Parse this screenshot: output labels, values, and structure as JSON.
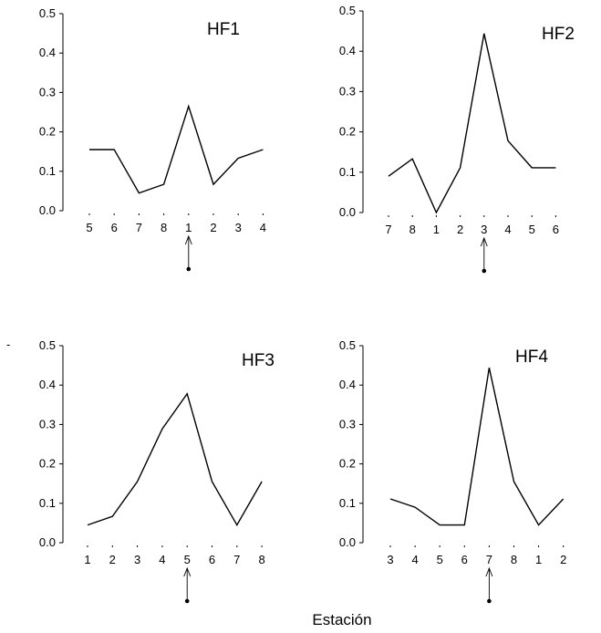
{
  "figure": {
    "xlabel": "Estación",
    "stray_mark": "-"
  },
  "chart_data": [
    {
      "type": "line",
      "title": "HF1",
      "categories": [
        "5",
        "6",
        "7",
        "8",
        "1",
        "2",
        "3",
        "4"
      ],
      "values": [
        0.155,
        0.155,
        0.045,
        0.067,
        0.265,
        0.067,
        0.133,
        0.155
      ],
      "ylim": [
        0,
        0.5
      ],
      "yticks": [
        "0.0",
        "0.1",
        "0.2",
        "0.3",
        "0.4",
        "0.5"
      ],
      "marker_category": "1",
      "grid": false
    },
    {
      "type": "line",
      "title": "HF2",
      "categories": [
        "7",
        "8",
        "1",
        "2",
        "3",
        "4",
        "5",
        "6"
      ],
      "values": [
        0.09,
        0.133,
        0.0,
        0.111,
        0.444,
        0.178,
        0.111,
        0.111
      ],
      "ylim": [
        0,
        0.5
      ],
      "yticks": [
        "0.0",
        "0.1",
        "0.2",
        "0.3",
        "0.4",
        "0.5"
      ],
      "marker_category": "3",
      "grid": false
    },
    {
      "type": "line",
      "title": "HF3",
      "categories": [
        "1",
        "2",
        "3",
        "4",
        "5",
        "6",
        "7",
        "8"
      ],
      "values": [
        0.045,
        0.067,
        0.155,
        0.289,
        0.378,
        0.155,
        0.045,
        0.155
      ],
      "ylim": [
        0,
        0.5
      ],
      "yticks": [
        "0.0",
        "0.1",
        "0.2",
        "0.3",
        "0.4",
        "0.5"
      ],
      "marker_category": "5",
      "grid": false
    },
    {
      "type": "line",
      "title": "HF4",
      "categories": [
        "3",
        "4",
        "5",
        "6",
        "7",
        "8",
        "1",
        "2"
      ],
      "values": [
        0.111,
        0.09,
        0.045,
        0.045,
        0.444,
        0.155,
        0.045,
        0.111
      ],
      "ylim": [
        0,
        0.5
      ],
      "yticks": [
        "0.0",
        "0.1",
        "0.2",
        "0.3",
        "0.4",
        "0.5"
      ],
      "marker_category": "7",
      "grid": false
    }
  ]
}
